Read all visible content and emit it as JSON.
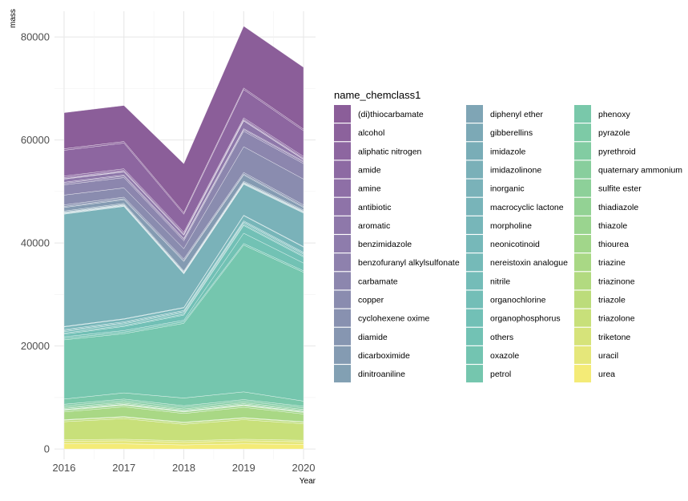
{
  "chart_data": {
    "type": "area",
    "stacked": true,
    "xlabel": "Year",
    "ylabel": "mass",
    "x": [
      2016,
      2017,
      2018,
      2019,
      2020
    ],
    "xlim": [
      2016,
      2020
    ],
    "ylim": [
      -2000,
      85000
    ],
    "yticks": [
      0,
      20000,
      40000,
      60000,
      80000
    ],
    "ytick_labels": [
      "0",
      "20000",
      "40000",
      "60000",
      "80000"
    ],
    "xtick_labels": [
      "2016",
      "2017",
      "2018",
      "2019",
      "2020"
    ],
    "grid": true,
    "legend_title": "name_chemclass1",
    "legend_position": "right",
    "series": [
      {
        "name": "(di)thiocarbamate",
        "color": "#8b5e99",
        "values": [
          7000,
          7000,
          9500,
          12000,
          12000
        ]
      },
      {
        "name": "alcohol",
        "color": "#8c629c",
        "values": [
          300,
          300,
          300,
          300,
          300
        ]
      },
      {
        "name": "aliphatic nitrogen",
        "color": "#8d66a0",
        "values": [
          5000,
          5000,
          3500,
          5500,
          5000
        ]
      },
      {
        "name": "amide",
        "color": "#8d6aa3",
        "values": [
          300,
          300,
          300,
          300,
          300
        ]
      },
      {
        "name": "amine",
        "color": "#8e6fa6",
        "values": [
          200,
          200,
          200,
          200,
          200
        ]
      },
      {
        "name": "antibiotic",
        "color": "#8e73a8",
        "values": [
          100,
          100,
          100,
          100,
          100
        ]
      },
      {
        "name": "aromatic",
        "color": "#8e78aa",
        "values": [
          600,
          600,
          600,
          1500,
          300
        ]
      },
      {
        "name": "benzimidazole",
        "color": "#8e7cac",
        "values": [
          200,
          200,
          200,
          200,
          200
        ]
      },
      {
        "name": "benzofuranyl alkylsulfonate",
        "color": "#8e81ad",
        "values": [
          300,
          300,
          300,
          300,
          300
        ]
      },
      {
        "name": "carbamate",
        "color": "#8c86ae",
        "values": [
          2000,
          2000,
          1500,
          3000,
          3000
        ]
      },
      {
        "name": "copper",
        "color": "#8a8caf",
        "values": [
          1900,
          1800,
          2000,
          5000,
          5000
        ]
      },
      {
        "name": "cyclohexene oxime",
        "color": "#8891b0",
        "values": [
          300,
          300,
          300,
          300,
          300
        ]
      },
      {
        "name": "diamide",
        "color": "#8696b1",
        "values": [
          200,
          200,
          200,
          200,
          200
        ]
      },
      {
        "name": "dicarboximide",
        "color": "#849bb2",
        "values": [
          700,
          700,
          1800,
          1200,
          500
        ]
      },
      {
        "name": "dinitroaniline",
        "color": "#82a0b3",
        "values": [
          200,
          200,
          200,
          200,
          200
        ]
      },
      {
        "name": "diphenyl ether",
        "color": "#7fa5b5",
        "values": [
          100,
          100,
          100,
          100,
          100
        ]
      },
      {
        "name": "gibberellins",
        "color": "#7ca9b6",
        "values": [
          100,
          100,
          100,
          100,
          100
        ]
      },
      {
        "name": "imidazole",
        "color": "#79adb7",
        "values": [
          100,
          100,
          100,
          100,
          100
        ]
      },
      {
        "name": "imidazolinone",
        "color": "#7ab0b8",
        "values": [
          100,
          100,
          100,
          100,
          100
        ]
      },
      {
        "name": "inorganic",
        "color": "#7ab2b9",
        "values": [
          21800,
          21800,
          6500,
          6000,
          6500
        ]
      },
      {
        "name": "macrocyclic lactone",
        "color": "#78b4b9",
        "values": [
          100,
          100,
          100,
          100,
          100
        ]
      },
      {
        "name": "morpholine",
        "color": "#77b6b9",
        "values": [
          500,
          500,
          500,
          1000,
          1000
        ]
      },
      {
        "name": "neonicotinoid",
        "color": "#76b8b9",
        "values": [
          200,
          200,
          200,
          200,
          200
        ]
      },
      {
        "name": "nereistoxin analogue",
        "color": "#75bab8",
        "values": [
          200,
          200,
          200,
          200,
          200
        ]
      },
      {
        "name": "nitrile",
        "color": "#74bcb8",
        "values": [
          300,
          300,
          300,
          300,
          300
        ]
      },
      {
        "name": "organochlorine",
        "color": "#73beb7",
        "values": [
          200,
          200,
          200,
          200,
          200
        ]
      },
      {
        "name": "organophosphorus",
        "color": "#72c0b6",
        "values": [
          500,
          800,
          1000,
          1500,
          1200
        ]
      },
      {
        "name": "others",
        "color": "#72c2b4",
        "values": [
          300,
          300,
          300,
          2000,
          1500
        ]
      },
      {
        "name": "oxazole",
        "color": "#73c4b1",
        "values": [
          300,
          300,
          300,
          300,
          300
        ]
      },
      {
        "name": "petrol",
        "color": "#75c6ae",
        "values": [
          11500,
          11500,
          14500,
          28500,
          25000
        ]
      },
      {
        "name": "phenoxy",
        "color": "#79c8aa",
        "values": [
          1000,
          1200,
          1500,
          1500,
          1000
        ]
      },
      {
        "name": "pyrazole",
        "color": "#7dcaa6",
        "values": [
          300,
          300,
          300,
          300,
          300
        ]
      },
      {
        "name": "pyrethroid",
        "color": "#82cca2",
        "values": [
          300,
          300,
          300,
          300,
          300
        ]
      },
      {
        "name": "quaternary ammonium",
        "color": "#88ce9d",
        "values": [
          200,
          200,
          200,
          200,
          200
        ]
      },
      {
        "name": "sulfite ester",
        "color": "#8dd099",
        "values": [
          200,
          200,
          200,
          200,
          200
        ]
      },
      {
        "name": "thiadiazole",
        "color": "#93d294",
        "values": [
          100,
          100,
          100,
          100,
          100
        ]
      },
      {
        "name": "thiazole",
        "color": "#9ad48f",
        "values": [
          100,
          100,
          100,
          100,
          100
        ]
      },
      {
        "name": "thiourea",
        "color": "#a1d68a",
        "values": [
          300,
          300,
          300,
          300,
          300
        ]
      },
      {
        "name": "triazine",
        "color": "#a9d885",
        "values": [
          1500,
          1900,
          1700,
          2000,
          1500
        ]
      },
      {
        "name": "triazinone",
        "color": "#b2da80",
        "values": [
          100,
          100,
          100,
          100,
          100
        ]
      },
      {
        "name": "triazole",
        "color": "#bcdc7b",
        "values": [
          300,
          300,
          300,
          300,
          300
        ]
      },
      {
        "name": "triazolone",
        "color": "#c8e07a",
        "values": [
          3500,
          4000,
          3200,
          3800,
          3200
        ]
      },
      {
        "name": "triketone",
        "color": "#d6e37a",
        "values": [
          300,
          300,
          300,
          300,
          300
        ]
      },
      {
        "name": "uracil",
        "color": "#e5e77a",
        "values": [
          500,
          600,
          500,
          600,
          500
        ]
      },
      {
        "name": "urea",
        "color": "#f4eb77",
        "values": [
          1000,
          1000,
          800,
          1000,
          900
        ]
      }
    ]
  }
}
